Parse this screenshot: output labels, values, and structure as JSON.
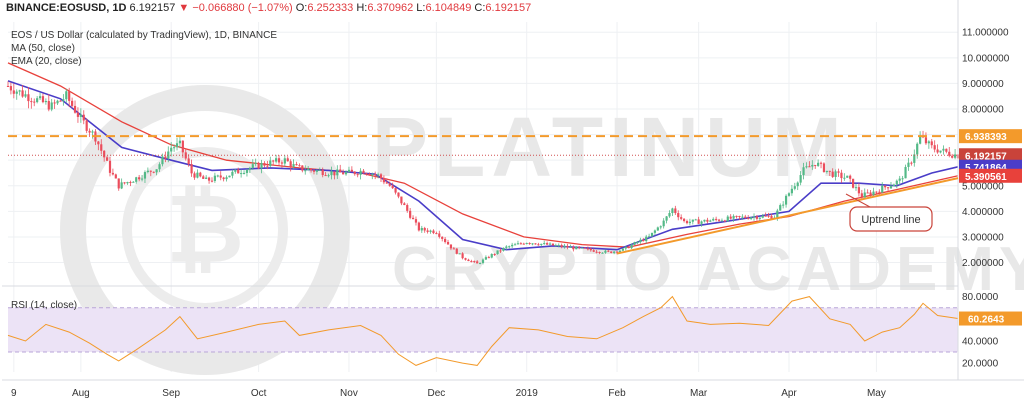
{
  "header": {
    "symbol": "BINANCE:EOSUSD, 1D",
    "last": "6.192157",
    "change": "▼ −0.066880 (−1.07%)",
    "open_label": "O:",
    "open": "6.252333",
    "high_label": "H:",
    "high": "6.370962",
    "low_label": "L:",
    "low": "6.104849",
    "close_label": "C:",
    "close": "6.192157"
  },
  "legend": {
    "title": "EOS / US Dollar (calculated by TradingView), 1D, BINANCE",
    "ma": "MA (50, close)",
    "ema": "EMA (20, close)",
    "rsi": "RSI (14, close)"
  },
  "watermark": {
    "line1": "PLATINUM",
    "line2": "CRYPTO ACADEMY"
  },
  "annotation": {
    "text": "Uptrend line"
  },
  "colors": {
    "up": "#53b987",
    "down": "#eb4d5c",
    "ma": "#e8413b",
    "ema": "#4a3dc8",
    "trend": "#f39a2b",
    "resistance": "#f39a2b",
    "rsi_line": "#f39a2b",
    "rsi_band": "#ece3f6",
    "grid": "#eef0f3",
    "price_tag_blue": "#4a3dc8",
    "price_tag_red": "#e8413b",
    "price_tag_last": "#c9433a"
  },
  "chart_data": {
    "type": "candlestick",
    "y_axis": {
      "min": 1.2,
      "max": 11.4,
      "ticks": [
        "11.000000",
        "10.000000",
        "9.000000",
        "8.000000",
        "7.000000",
        "6.000000",
        "5.000000",
        "4.000000",
        "3.000000",
        "2.000000"
      ]
    },
    "x_axis": {
      "start": "2018-07-07",
      "end": "2019-05-29",
      "ticks": [
        {
          "label": "9",
          "date": "2018-07-09"
        },
        {
          "label": "Aug",
          "date": "2018-08-01"
        },
        {
          "label": "Sep",
          "date": "2018-09-01"
        },
        {
          "label": "Oct",
          "date": "2018-10-01"
        },
        {
          "label": "Nov",
          "date": "2018-11-01"
        },
        {
          "label": "Dec",
          "date": "2018-12-01"
        },
        {
          "label": "2019",
          "date": "2019-01-01"
        },
        {
          "label": "Feb",
          "date": "2019-02-01"
        },
        {
          "label": "Mar",
          "date": "2019-03-01"
        },
        {
          "label": "Apr",
          "date": "2019-04-01"
        },
        {
          "label": "May",
          "date": "2019-05-01"
        }
      ]
    },
    "close_path": [
      {
        "d": "2018-07-07",
        "v": 8.9
      },
      {
        "d": "2018-07-12",
        "v": 8.6
      },
      {
        "d": "2018-07-18",
        "v": 8.3
      },
      {
        "d": "2018-07-22",
        "v": 8.1
      },
      {
        "d": "2018-07-27",
        "v": 8.5
      },
      {
        "d": "2018-08-01",
        "v": 7.6
      },
      {
        "d": "2018-08-06",
        "v": 6.9
      },
      {
        "d": "2018-08-11",
        "v": 5.6
      },
      {
        "d": "2018-08-14",
        "v": 5.0
      },
      {
        "d": "2018-08-20",
        "v": 5.3
      },
      {
        "d": "2018-08-27",
        "v": 5.7
      },
      {
        "d": "2018-09-01",
        "v": 6.5
      },
      {
        "d": "2018-09-04",
        "v": 6.6
      },
      {
        "d": "2018-09-08",
        "v": 5.5
      },
      {
        "d": "2018-09-13",
        "v": 5.2
      },
      {
        "d": "2018-09-20",
        "v": 5.4
      },
      {
        "d": "2018-09-25",
        "v": 5.6
      },
      {
        "d": "2018-10-01",
        "v": 5.8
      },
      {
        "d": "2018-10-05",
        "v": 5.9
      },
      {
        "d": "2018-10-10",
        "v": 6.0
      },
      {
        "d": "2018-10-14",
        "v": 5.7
      },
      {
        "d": "2018-10-20",
        "v": 5.6
      },
      {
        "d": "2018-10-27",
        "v": 5.5
      },
      {
        "d": "2018-11-02",
        "v": 5.5
      },
      {
        "d": "2018-11-06",
        "v": 5.6
      },
      {
        "d": "2018-11-11",
        "v": 5.4
      },
      {
        "d": "2018-11-15",
        "v": 5.0
      },
      {
        "d": "2018-11-20",
        "v": 4.2
      },
      {
        "d": "2018-11-25",
        "v": 3.3
      },
      {
        "d": "2018-12-01",
        "v": 3.2
      },
      {
        "d": "2018-12-06",
        "v": 2.6
      },
      {
        "d": "2018-12-10",
        "v": 2.2
      },
      {
        "d": "2018-12-15",
        "v": 1.95
      },
      {
        "d": "2018-12-20",
        "v": 2.3
      },
      {
        "d": "2018-12-25",
        "v": 2.6
      },
      {
        "d": "2019-01-01",
        "v": 2.8
      },
      {
        "d": "2019-01-08",
        "v": 2.7
      },
      {
        "d": "2019-01-15",
        "v": 2.6
      },
      {
        "d": "2019-01-22",
        "v": 2.5
      },
      {
        "d": "2019-01-29",
        "v": 2.4
      },
      {
        "d": "2019-02-03",
        "v": 2.5
      },
      {
        "d": "2019-02-08",
        "v": 2.8
      },
      {
        "d": "2019-02-12",
        "v": 3.0
      },
      {
        "d": "2019-02-17",
        "v": 3.6
      },
      {
        "d": "2019-02-20",
        "v": 4.1
      },
      {
        "d": "2019-02-24",
        "v": 3.6
      },
      {
        "d": "2019-03-01",
        "v": 3.6
      },
      {
        "d": "2019-03-10",
        "v": 3.7
      },
      {
        "d": "2019-03-20",
        "v": 3.8
      },
      {
        "d": "2019-03-27",
        "v": 3.8
      },
      {
        "d": "2019-04-02",
        "v": 4.9
      },
      {
        "d": "2019-04-06",
        "v": 5.6
      },
      {
        "d": "2019-04-10",
        "v": 5.9
      },
      {
        "d": "2019-04-15",
        "v": 5.5
      },
      {
        "d": "2019-04-21",
        "v": 5.3
      },
      {
        "d": "2019-04-26",
        "v": 4.6
      },
      {
        "d": "2019-05-01",
        "v": 4.8
      },
      {
        "d": "2019-05-05",
        "v": 5.0
      },
      {
        "d": "2019-05-09",
        "v": 5.2
      },
      {
        "d": "2019-05-13",
        "v": 6.0
      },
      {
        "d": "2019-05-16",
        "v": 6.9
      },
      {
        "d": "2019-05-20",
        "v": 6.5
      },
      {
        "d": "2019-05-25",
        "v": 6.3
      },
      {
        "d": "2019-05-29",
        "v": 6.19
      }
    ],
    "series": [
      {
        "name": "MA (50, close)",
        "last": "5.390561",
        "points": [
          {
            "d": "2018-07-07",
            "v": 9.8
          },
          {
            "d": "2018-07-25",
            "v": 8.9
          },
          {
            "d": "2018-08-15",
            "v": 7.5
          },
          {
            "d": "2018-09-01",
            "v": 6.6
          },
          {
            "d": "2018-09-20",
            "v": 6.0
          },
          {
            "d": "2018-10-15",
            "v": 5.7
          },
          {
            "d": "2018-11-05",
            "v": 5.5
          },
          {
            "d": "2018-11-20",
            "v": 5.1
          },
          {
            "d": "2018-12-10",
            "v": 3.9
          },
          {
            "d": "2018-12-31",
            "v": 3.0
          },
          {
            "d": "2019-01-20",
            "v": 2.7
          },
          {
            "d": "2019-02-05",
            "v": 2.6
          },
          {
            "d": "2019-02-25",
            "v": 3.1
          },
          {
            "d": "2019-03-15",
            "v": 3.5
          },
          {
            "d": "2019-04-01",
            "v": 3.8
          },
          {
            "d": "2019-04-20",
            "v": 4.4
          },
          {
            "d": "2019-05-10",
            "v": 4.9
          },
          {
            "d": "2019-05-29",
            "v": 5.39
          }
        ]
      },
      {
        "name": "EMA (20, close)",
        "last": "5.741864",
        "points": [
          {
            "d": "2018-07-07",
            "v": 9.1
          },
          {
            "d": "2018-07-25",
            "v": 8.4
          },
          {
            "d": "2018-08-15",
            "v": 6.5
          },
          {
            "d": "2018-09-01",
            "v": 6.0
          },
          {
            "d": "2018-09-15",
            "v": 5.6
          },
          {
            "d": "2018-10-05",
            "v": 5.7
          },
          {
            "d": "2018-10-25",
            "v": 5.6
          },
          {
            "d": "2018-11-10",
            "v": 5.45
          },
          {
            "d": "2018-11-25",
            "v": 4.4
          },
          {
            "d": "2018-12-10",
            "v": 2.9
          },
          {
            "d": "2018-12-25",
            "v": 2.5
          },
          {
            "d": "2019-01-10",
            "v": 2.65
          },
          {
            "d": "2019-02-01",
            "v": 2.5
          },
          {
            "d": "2019-02-20",
            "v": 3.3
          },
          {
            "d": "2019-03-10",
            "v": 3.6
          },
          {
            "d": "2019-04-01",
            "v": 4.0
          },
          {
            "d": "2019-04-12",
            "v": 5.1
          },
          {
            "d": "2019-04-25",
            "v": 5.1
          },
          {
            "d": "2019-05-08",
            "v": 5.0
          },
          {
            "d": "2019-05-20",
            "v": 5.5
          },
          {
            "d": "2019-05-29",
            "v": 5.74
          }
        ]
      }
    ],
    "resistance": {
      "value": 6.938393,
      "label": "6.938393"
    },
    "last_price_label": "6.192157",
    "ema_label": "5.741864",
    "ma_label": "5.390561",
    "trendline": {
      "from": {
        "d": "2019-02-01",
        "v": 2.35
      },
      "to": {
        "d": "2019-05-29",
        "v": 5.3
      }
    },
    "rsi": {
      "name": "RSI (14, close)",
      "min": 12,
      "max": 86,
      "ticks": [
        "80.0000",
        "60.0000",
        "40.0000",
        "20.0000"
      ],
      "band": [
        30,
        70
      ],
      "last_label": "60.2643",
      "points": [
        {
          "d": "2018-07-07",
          "v": 45
        },
        {
          "d": "2018-07-13",
          "v": 40
        },
        {
          "d": "2018-07-20",
          "v": 55
        },
        {
          "d": "2018-07-28",
          "v": 48
        },
        {
          "d": "2018-08-04",
          "v": 38
        },
        {
          "d": "2018-08-10",
          "v": 28
        },
        {
          "d": "2018-08-14",
          "v": 22
        },
        {
          "d": "2018-08-20",
          "v": 32
        },
        {
          "d": "2018-08-30",
          "v": 50
        },
        {
          "d": "2018-09-04",
          "v": 62
        },
        {
          "d": "2018-09-10",
          "v": 42
        },
        {
          "d": "2018-09-20",
          "v": 48
        },
        {
          "d": "2018-10-01",
          "v": 55
        },
        {
          "d": "2018-10-10",
          "v": 58
        },
        {
          "d": "2018-10-15",
          "v": 45
        },
        {
          "d": "2018-10-25",
          "v": 50
        },
        {
          "d": "2018-11-05",
          "v": 54
        },
        {
          "d": "2018-11-12",
          "v": 45
        },
        {
          "d": "2018-11-18",
          "v": 28
        },
        {
          "d": "2018-11-24",
          "v": 18
        },
        {
          "d": "2018-12-01",
          "v": 25
        },
        {
          "d": "2018-12-10",
          "v": 20
        },
        {
          "d": "2018-12-15",
          "v": 18
        },
        {
          "d": "2018-12-20",
          "v": 35
        },
        {
          "d": "2018-12-26",
          "v": 52
        },
        {
          "d": "2019-01-05",
          "v": 50
        },
        {
          "d": "2019-01-15",
          "v": 44
        },
        {
          "d": "2019-01-25",
          "v": 42
        },
        {
          "d": "2019-02-03",
          "v": 52
        },
        {
          "d": "2019-02-10",
          "v": 62
        },
        {
          "d": "2019-02-16",
          "v": 70
        },
        {
          "d": "2019-02-20",
          "v": 80
        },
        {
          "d": "2019-02-25",
          "v": 58
        },
        {
          "d": "2019-03-05",
          "v": 55
        },
        {
          "d": "2019-03-15",
          "v": 56
        },
        {
          "d": "2019-03-25",
          "v": 54
        },
        {
          "d": "2019-04-02",
          "v": 76
        },
        {
          "d": "2019-04-08",
          "v": 80
        },
        {
          "d": "2019-04-15",
          "v": 60
        },
        {
          "d": "2019-04-22",
          "v": 55
        },
        {
          "d": "2019-04-27",
          "v": 40
        },
        {
          "d": "2019-05-03",
          "v": 48
        },
        {
          "d": "2019-05-09",
          "v": 52
        },
        {
          "d": "2019-05-14",
          "v": 64
        },
        {
          "d": "2019-05-17",
          "v": 74
        },
        {
          "d": "2019-05-22",
          "v": 63
        },
        {
          "d": "2019-05-29",
          "v": 60.26
        }
      ]
    }
  }
}
